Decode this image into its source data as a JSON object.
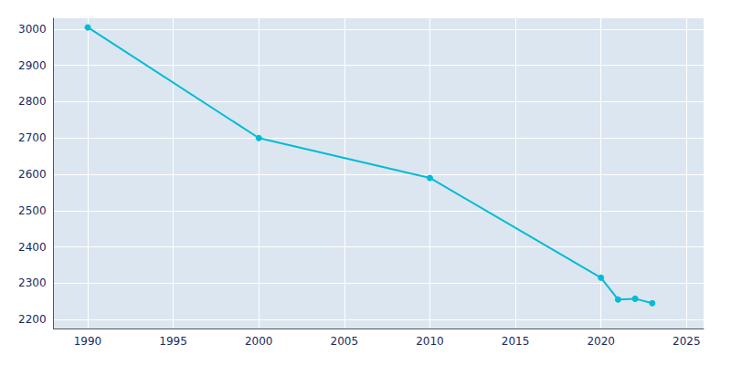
{
  "chart_data": {
    "type": "line",
    "x": [
      1990,
      2000,
      2010,
      2020,
      2021,
      2022,
      2023
    ],
    "values": [
      3005,
      2700,
      2590,
      2315,
      2255,
      2257,
      2245
    ],
    "color": "#00bcd4",
    "marker": "circle",
    "xlim": [
      1988,
      2026
    ],
    "xticks": [
      1990,
      1995,
      2000,
      2005,
      2010,
      2015,
      2020,
      2025
    ],
    "ylim": [
      2175,
      3030
    ],
    "yticks": [
      2200,
      2300,
      2400,
      2500,
      2600,
      2700,
      2800,
      2900,
      3000
    ],
    "grid": true
  }
}
